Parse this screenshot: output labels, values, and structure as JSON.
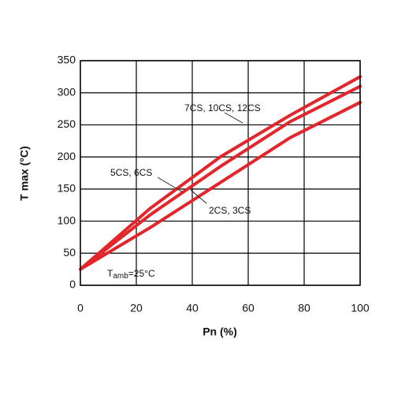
{
  "chart_data": {
    "type": "line",
    "x": [
      0,
      25,
      50,
      75,
      100
    ],
    "series": [
      {
        "name": "7CS, 10CS, 12CS",
        "color": "#e3262b",
        "values": [
          25,
          120,
          200,
          265,
          325
        ]
      },
      {
        "name": "5CS, 6CS",
        "color": "#e3262b",
        "values": [
          25,
          110,
          185,
          255,
          310
        ]
      },
      {
        "name": "2CS, 3CS",
        "color": "#e3262b",
        "values": [
          25,
          90,
          160,
          230,
          285
        ]
      }
    ],
    "xlabel": "Pn (%)",
    "ylabel": "T max  (°C)",
    "xlim": [
      0,
      100
    ],
    "ylim": [
      0,
      350
    ],
    "xticks": [
      0,
      20,
      40,
      60,
      80,
      100
    ],
    "yticks": [
      0,
      50,
      100,
      150,
      200,
      250,
      300,
      350
    ],
    "grid": true,
    "annotation": {
      "symbol": "T",
      "subscript": "amb",
      "text": "=25°C"
    }
  }
}
